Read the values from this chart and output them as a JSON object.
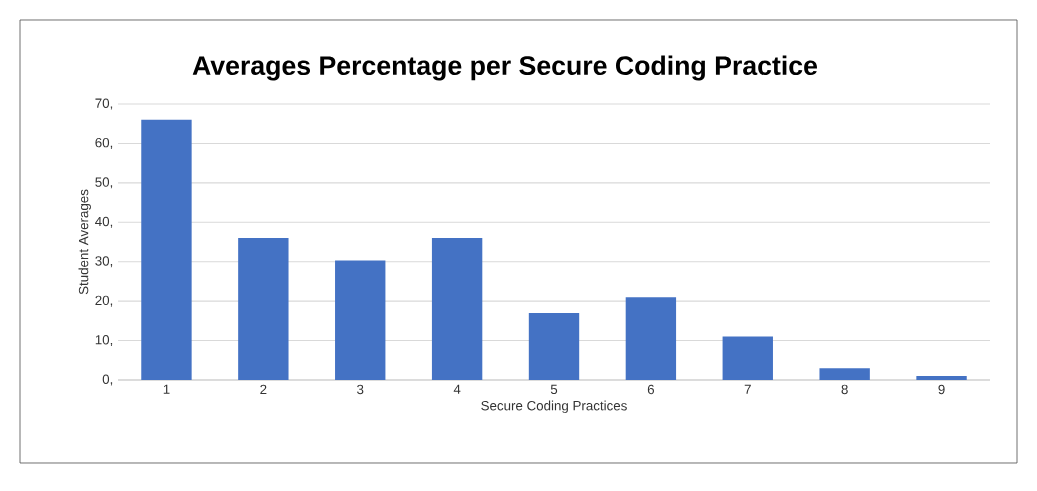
{
  "chart_data": {
    "type": "bar",
    "title": "Averages Percentage per Secure Coding Practice",
    "xlabel": "Secure Coding Practices",
    "ylabel": "Student Averages",
    "categories": [
      "1",
      "2",
      "3",
      "4",
      "5",
      "6",
      "7",
      "8",
      "9"
    ],
    "values": [
      66,
      36,
      30.3,
      36,
      17,
      21,
      11,
      3,
      1
    ],
    "color": "#4472c4",
    "ylim": [
      0,
      70
    ],
    "yticks": [
      {
        "value": 0,
        "label": "0,"
      },
      {
        "value": 10,
        "label": "10,"
      },
      {
        "value": 20,
        "label": "20,"
      },
      {
        "value": 30,
        "label": "30,"
      },
      {
        "value": 40,
        "label": "40,"
      },
      {
        "value": 50,
        "label": "50,"
      },
      {
        "value": 60,
        "label": "60,"
      },
      {
        "value": 70,
        "label": "70,"
      }
    ],
    "grid": "y"
  }
}
